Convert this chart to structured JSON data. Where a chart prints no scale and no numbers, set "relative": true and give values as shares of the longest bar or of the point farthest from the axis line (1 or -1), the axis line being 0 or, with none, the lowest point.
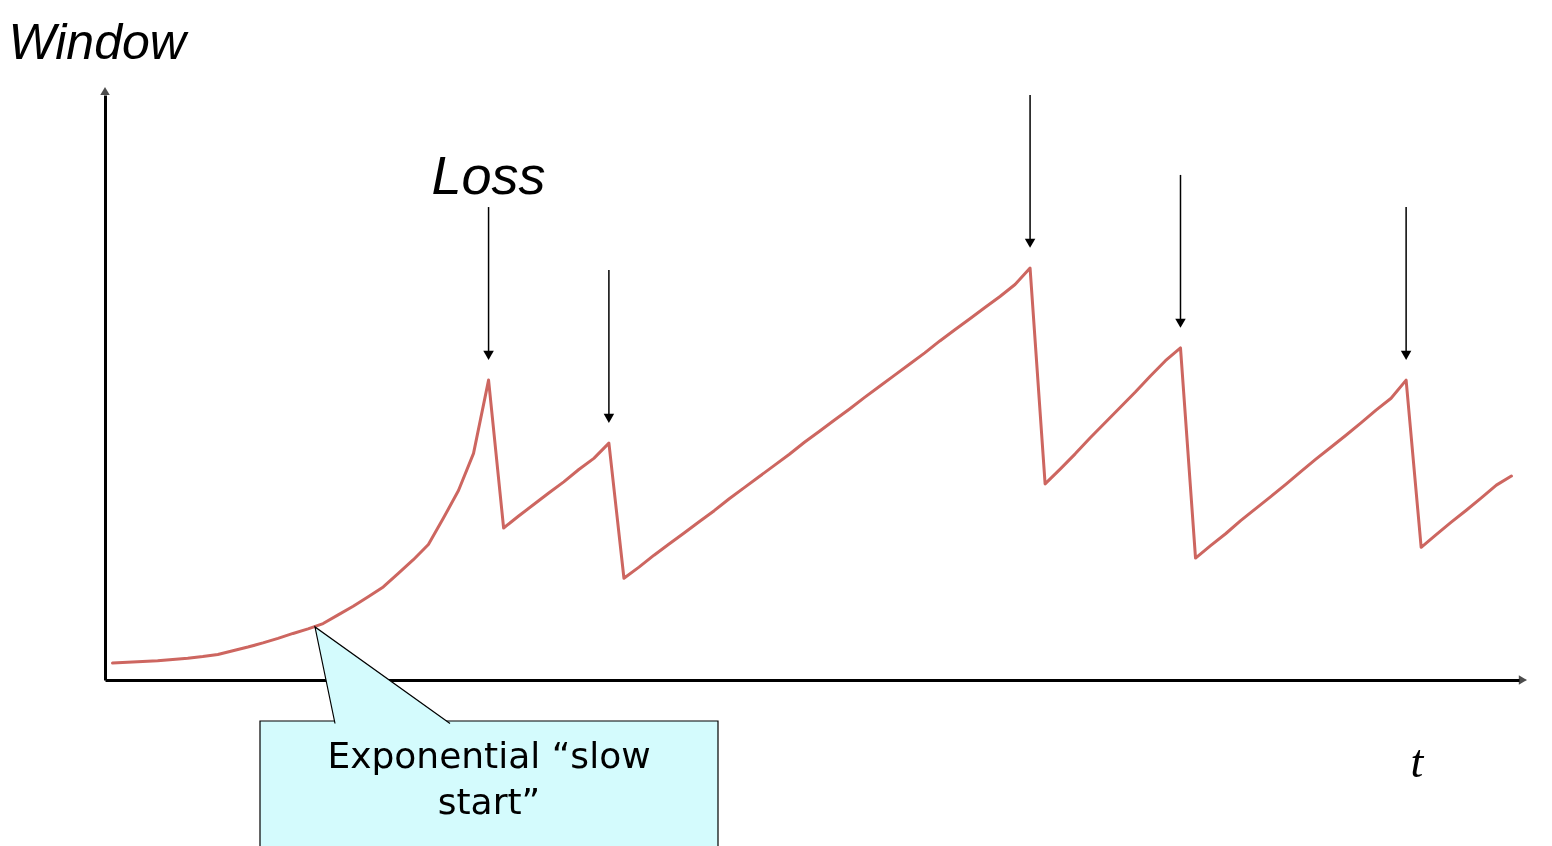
{
  "chart_data": {
    "type": "line",
    "relative": true,
    "xlabel": "t",
    "ylabel": "Window",
    "marker": "none",
    "line_style": "solid",
    "categories": [
      null,
      null,
      null,
      null,
      null,
      null,
      null,
      null,
      null,
      null,
      null,
      null,
      null,
      null,
      null,
      null,
      null,
      null,
      null,
      null,
      null,
      null,
      null,
      null,
      null,
      null,
      null,
      null,
      null,
      null,
      null,
      null,
      null,
      null,
      null,
      null,
      null,
      null,
      null,
      null,
      null,
      null,
      null,
      null,
      null,
      null,
      null,
      null,
      null,
      null,
      null,
      null,
      null,
      null,
      null,
      null,
      null,
      null,
      null,
      null,
      null,
      null,
      null,
      null,
      null,
      null,
      null,
      null,
      null,
      null,
      null,
      null,
      null,
      null,
      null,
      null,
      null,
      null,
      null,
      null,
      null,
      null,
      null,
      null,
      null,
      null,
      null,
      null,
      null,
      null,
      null,
      null,
      null,
      null
    ],
    "series": [
      {
        "color": "#cd6660",
        "values": [
          0.041,
          0.043,
          0.045,
          0.047,
          0.05,
          0.053,
          0.057,
          0.062,
          0.071,
          0.08,
          0.09,
          0.101,
          0.113,
          0.124,
          0.137,
          0.158,
          0.179,
          0.202,
          0.226,
          0.259,
          0.292,
          0.329,
          0.393,
          0.46,
          0.55,
          0.728,
          0.369,
          0.398,
          0.426,
          0.454,
          0.481,
          0.511,
          0.538,
          0.575,
          0.247,
          0.274,
          0.303,
          0.33,
          0.357,
          0.384,
          0.411,
          0.44,
          0.467,
          0.494,
          0.521,
          0.548,
          0.577,
          0.604,
          0.631,
          0.658,
          0.686,
          0.713,
          0.74,
          0.767,
          0.794,
          0.823,
          0.85,
          0.877,
          0.904,
          0.931,
          0.96,
          1.0,
          0.476,
          0.512,
          0.549,
          0.588,
          0.625,
          0.662,
          0.699,
          0.738,
          0.775,
          0.806,
          0.296,
          0.326,
          0.355,
          0.387,
          0.416,
          0.445,
          0.475,
          0.506,
          0.536,
          0.565,
          0.594,
          0.624,
          0.655,
          0.684,
          0.728,
          0.322,
          0.353,
          0.383,
          0.412,
          0.442,
          0.473,
          0.495
        ]
      }
    ],
    "annotations": [
      "Loss",
      "Exponential “slow start”"
    ]
  }
}
